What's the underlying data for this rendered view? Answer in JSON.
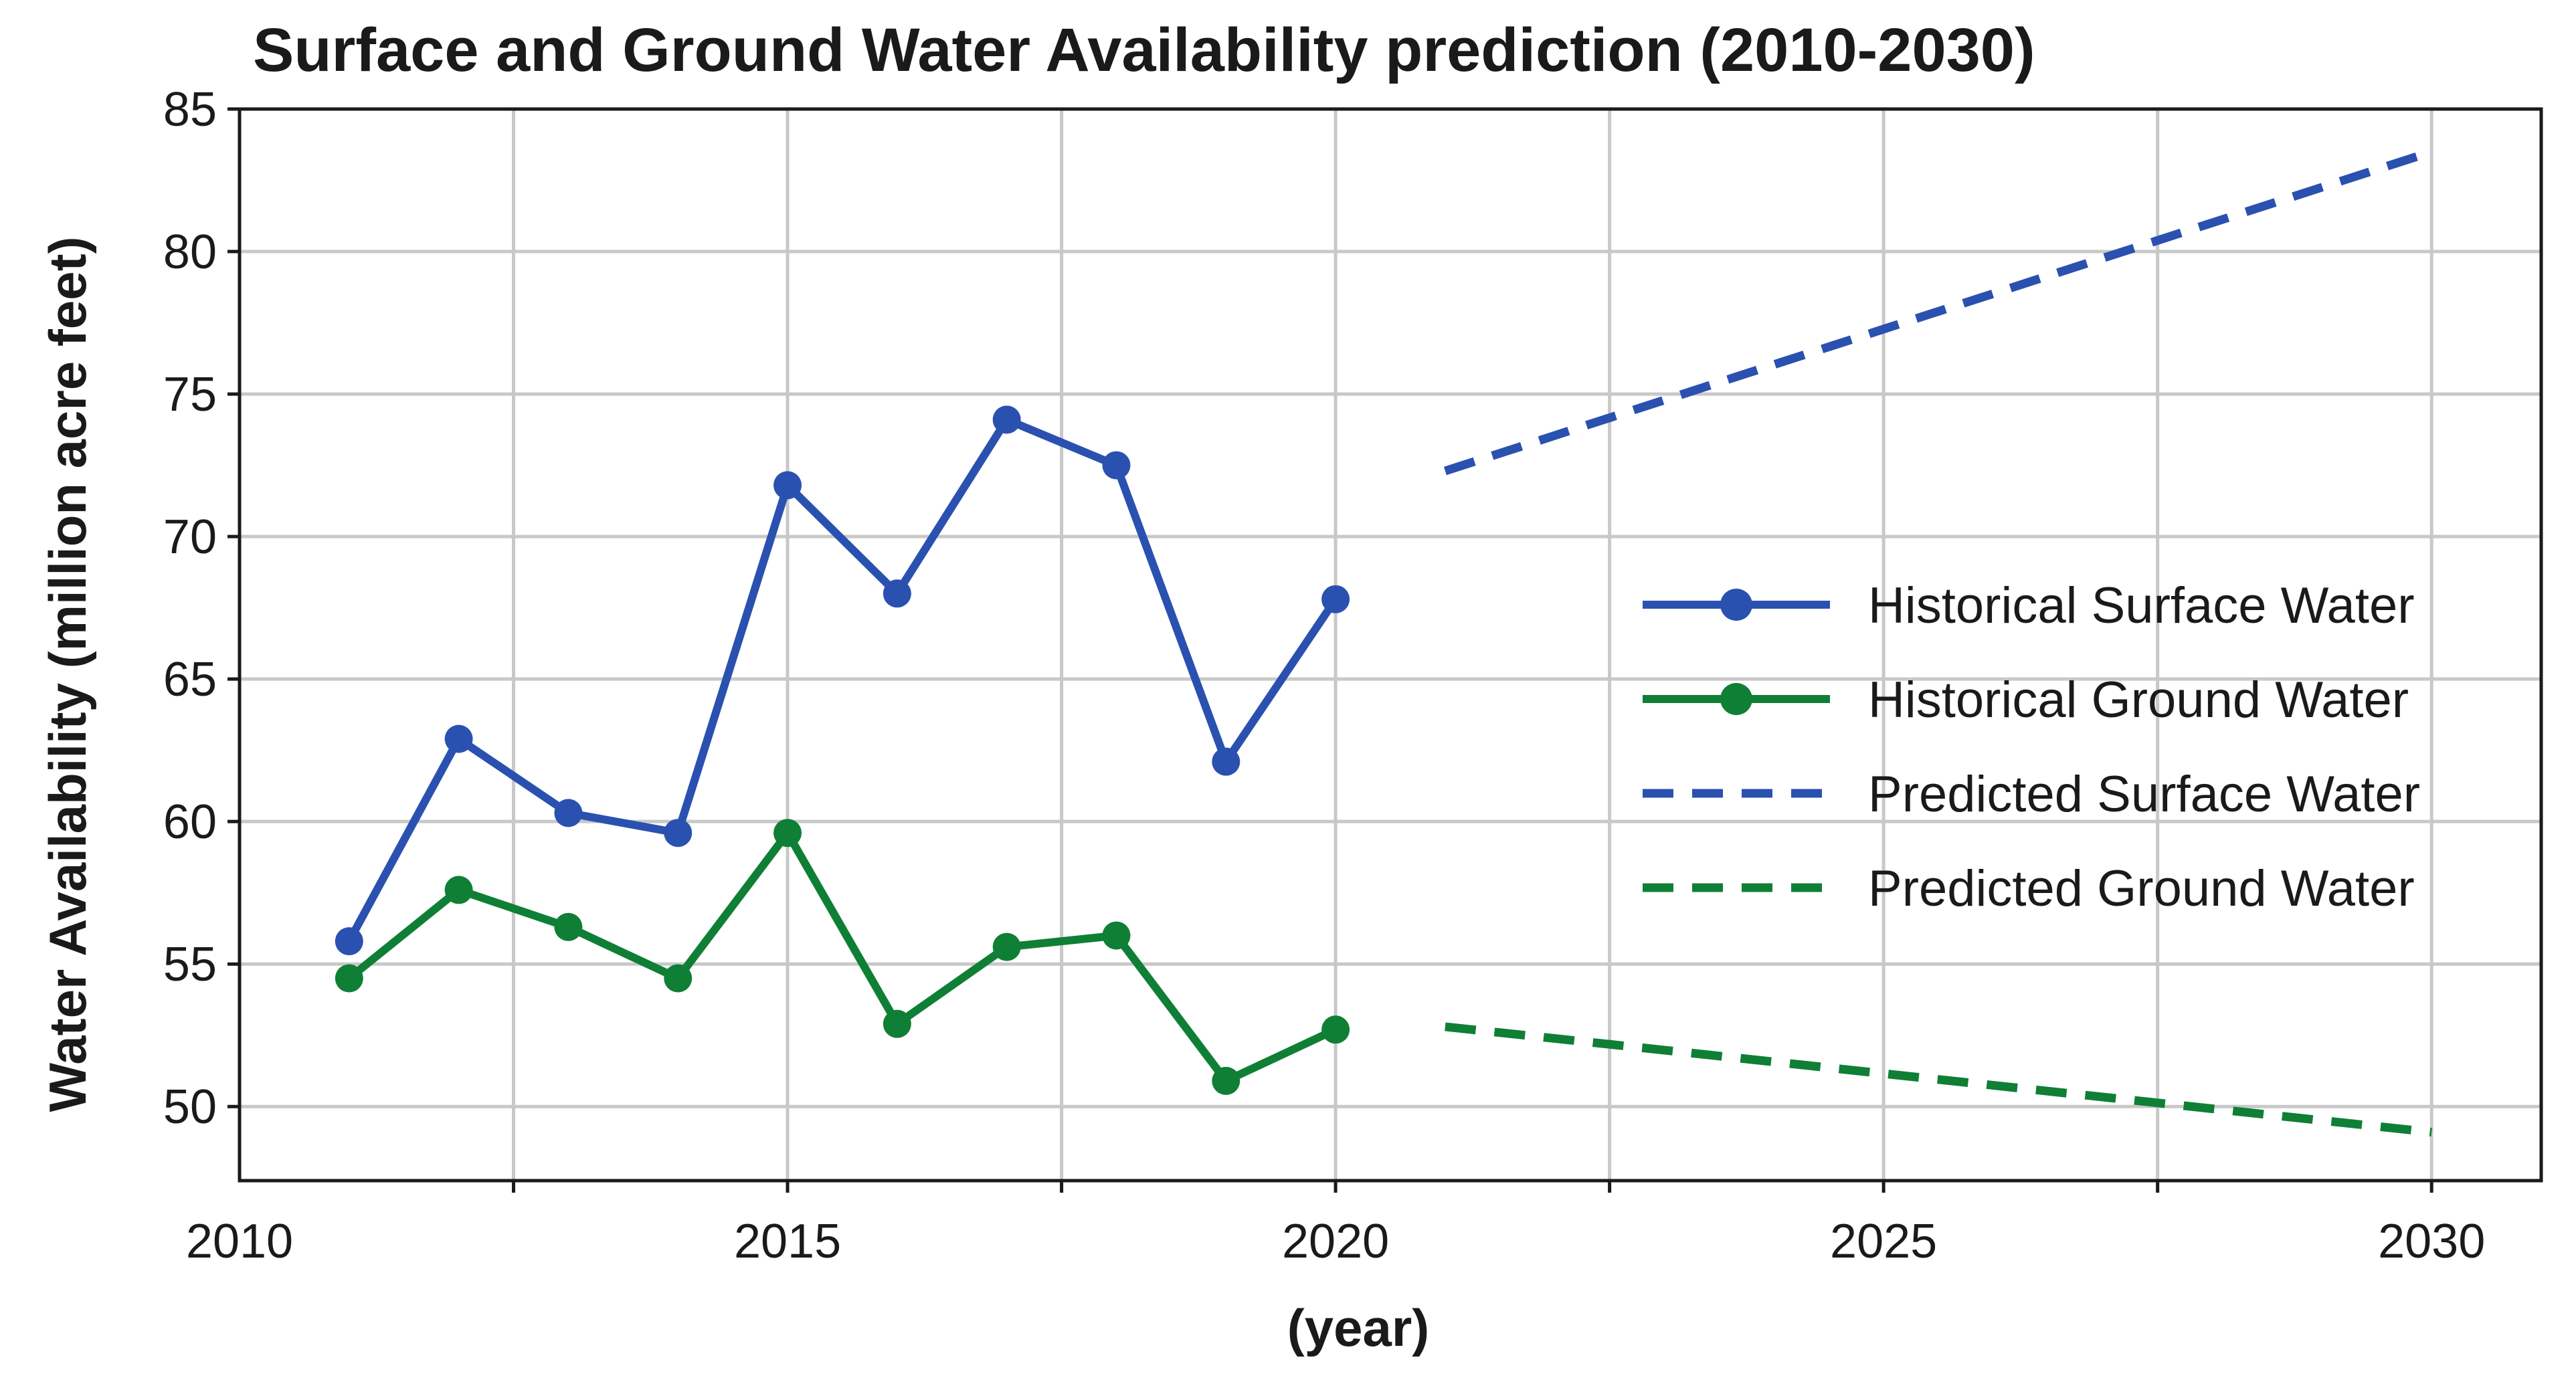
{
  "colors": {
    "surface": "#2a51b0",
    "ground": "#0f7f35",
    "grid": "#c8c8c8",
    "axis": "#1a1a1a"
  },
  "chart_data": {
    "type": "line",
    "title": "Surface and Ground Water Availability prediction (2010-2030)",
    "xlabel": "(year)",
    "ylabel": "Water Availability (million acre feet)",
    "xlim": [
      2010,
      2031
    ],
    "ylim": [
      47.4,
      85
    ],
    "x_ticks": [
      2010,
      2015,
      2020,
      2025,
      2030
    ],
    "x_tick_labels": [
      "2010",
      "2015",
      "2020",
      "2025",
      "2030"
    ],
    "x_grid": [
      2012.5,
      2015,
      2017.5,
      2020,
      2022.5,
      2025,
      2027.5,
      2030
    ],
    "y_ticks": [
      50,
      55,
      60,
      65,
      70,
      75,
      80,
      85
    ],
    "y_tick_labels": [
      "50",
      "55",
      "60",
      "65",
      "70",
      "75",
      "80",
      "85"
    ],
    "grid": true,
    "legend_position": "center-right",
    "series": [
      {
        "name": "Historical Surface Water",
        "style": "solid-marker",
        "color": "#2a51b0",
        "x": [
          2011,
          2012,
          2013,
          2014,
          2015,
          2016,
          2017,
          2018,
          2019,
          2020
        ],
        "values": [
          55.8,
          62.9,
          60.3,
          59.6,
          71.8,
          68.0,
          74.1,
          72.5,
          62.1,
          67.8
        ]
      },
      {
        "name": "Historical Ground Water",
        "style": "solid-marker",
        "color": "#0f7f35",
        "x": [
          2011,
          2012,
          2013,
          2014,
          2015,
          2016,
          2017,
          2018,
          2019,
          2020
        ],
        "values": [
          54.5,
          57.6,
          56.3,
          54.5,
          59.6,
          52.9,
          55.6,
          56.0,
          50.9,
          52.7
        ]
      },
      {
        "name": "Predicted Surface Water",
        "style": "dashed",
        "color": "#2a51b0",
        "x": [
          2021,
          2030
        ],
        "values": [
          72.3,
          83.5
        ]
      },
      {
        "name": "Predicted Ground Water",
        "style": "dashed",
        "color": "#0f7f35",
        "x": [
          2021,
          2030
        ],
        "values": [
          52.8,
          49.1
        ]
      }
    ]
  }
}
